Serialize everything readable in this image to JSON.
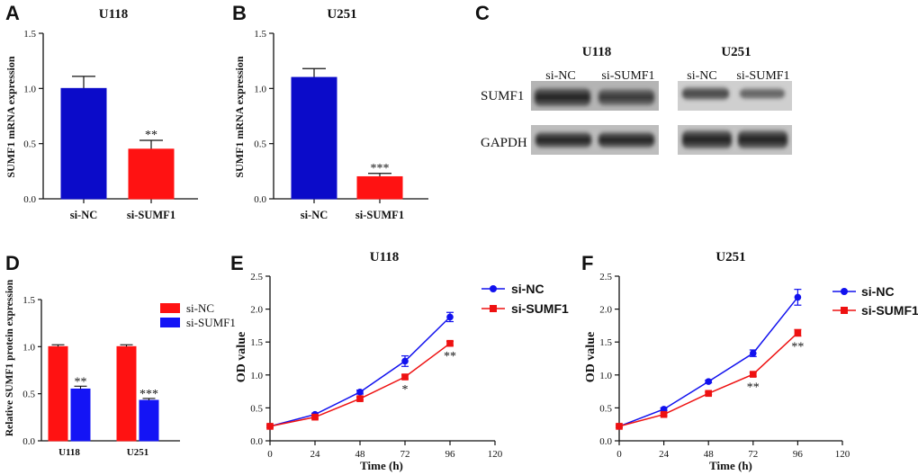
{
  "panels": {
    "A": {
      "label": "A",
      "chart_data": {
        "type": "bar",
        "title": "U118",
        "ylabel": "SUMF1 mRNA expression",
        "categories": [
          "si-NC",
          "si-SUMF1"
        ],
        "values": [
          1.0,
          0.45
        ],
        "errors": [
          0.11,
          0.08
        ],
        "colors": [
          "#0b0bc9",
          "#ff1212"
        ],
        "significance": [
          "",
          "**"
        ],
        "ylim": [
          0,
          1.5
        ],
        "yticks": [
          "0.0",
          "0.5",
          "1.0",
          "1.5"
        ]
      }
    },
    "B": {
      "label": "B",
      "chart_data": {
        "type": "bar",
        "title": "U251",
        "ylabel": "SUMF1 mRNA expression",
        "categories": [
          "si-NC",
          "si-SUMF1"
        ],
        "values": [
          1.1,
          0.2
        ],
        "errors": [
          0.08,
          0.03
        ],
        "colors": [
          "#0b0bc9",
          "#ff1212"
        ],
        "significance": [
          "",
          "***"
        ],
        "ylim": [
          0,
          1.5
        ],
        "yticks": [
          "0.0",
          "0.5",
          "1.0",
          "1.5"
        ]
      }
    },
    "C": {
      "label": "C",
      "groups": [
        {
          "title": "U118",
          "lanes": [
            "si-NC",
            "si-SUMF1"
          ]
        },
        {
          "title": "U251",
          "lanes": [
            "si-NC",
            "si-SUMF1"
          ]
        }
      ],
      "rows": [
        "SUMF1",
        "GAPDH"
      ]
    },
    "D": {
      "label": "D",
      "chart_data": {
        "type": "bar",
        "ylabel": "Relative SUMF1 protein expression",
        "categories": [
          "U118",
          "U251"
        ],
        "series": [
          {
            "name": "si-NC",
            "color": "#ff1212",
            "values": [
              1.0,
              1.0
            ],
            "errors": [
              0.02,
              0.02
            ],
            "significance": [
              "",
              ""
            ]
          },
          {
            "name": "si-SUMF1",
            "color": "#1414f5",
            "values": [
              0.55,
              0.43
            ],
            "errors": [
              0.03,
              0.02
            ],
            "significance": [
              "**",
              "***"
            ]
          }
        ],
        "ylim": [
          0,
          1.5
        ],
        "yticks": [
          "0.0",
          "0.5",
          "1.0",
          "1.5"
        ]
      }
    },
    "E": {
      "label": "E",
      "chart_data": {
        "type": "line",
        "title": "U118",
        "xlabel": "Time (h)",
        "ylabel": "OD value",
        "x": [
          0,
          24,
          48,
          72,
          96
        ],
        "series": [
          {
            "name": "si-NC",
            "color": "#1111ee",
            "marker": "circle",
            "values": [
              0.22,
              0.4,
              0.74,
              1.21,
              1.88
            ],
            "errors": [
              0.02,
              0.02,
              0.03,
              0.08,
              0.07
            ],
            "significance": [
              "",
              "",
              "",
              "",
              ""
            ]
          },
          {
            "name": "si-SUMF1",
            "color": "#ee1111",
            "marker": "square",
            "values": [
              0.22,
              0.36,
              0.64,
              0.97,
              1.48
            ],
            "errors": [
              0.02,
              0.02,
              0.02,
              0.03,
              0.03
            ],
            "significance": [
              "",
              "",
              "",
              "*",
              "**"
            ]
          }
        ],
        "xlim": [
          0,
          120
        ],
        "ylim": [
          0,
          2.5
        ],
        "xticks": [
          "0",
          "24",
          "48",
          "72",
          "96",
          "120"
        ],
        "yticks": [
          "0.0",
          "0.5",
          "1.0",
          "1.5",
          "2.0",
          "2.5"
        ]
      }
    },
    "F": {
      "label": "F",
      "chart_data": {
        "type": "line",
        "title": "U251",
        "xlabel": "Time (h)",
        "ylabel": "OD value",
        "x": [
          0,
          24,
          48,
          72,
          96
        ],
        "series": [
          {
            "name": "si-NC",
            "color": "#1111ee",
            "marker": "circle",
            "values": [
              0.22,
              0.48,
              0.9,
              1.33,
              2.18
            ],
            "errors": [
              0.02,
              0.02,
              0.02,
              0.05,
              0.12
            ],
            "significance": [
              "",
              "",
              "",
              "",
              ""
            ]
          },
          {
            "name": "si-SUMF1",
            "color": "#ee1111",
            "marker": "square",
            "values": [
              0.22,
              0.4,
              0.72,
              1.01,
              1.64
            ],
            "errors": [
              0.02,
              0.02,
              0.02,
              0.03,
              0.05
            ],
            "significance": [
              "",
              "",
              "",
              "**",
              "**"
            ]
          }
        ],
        "xlim": [
          0,
          120
        ],
        "ylim": [
          0,
          2.5
        ],
        "xticks": [
          "0",
          "24",
          "48",
          "72",
          "96",
          "120"
        ],
        "yticks": [
          "0.0",
          "0.5",
          "1.0",
          "1.5",
          "2.0",
          "2.5"
        ]
      }
    }
  }
}
